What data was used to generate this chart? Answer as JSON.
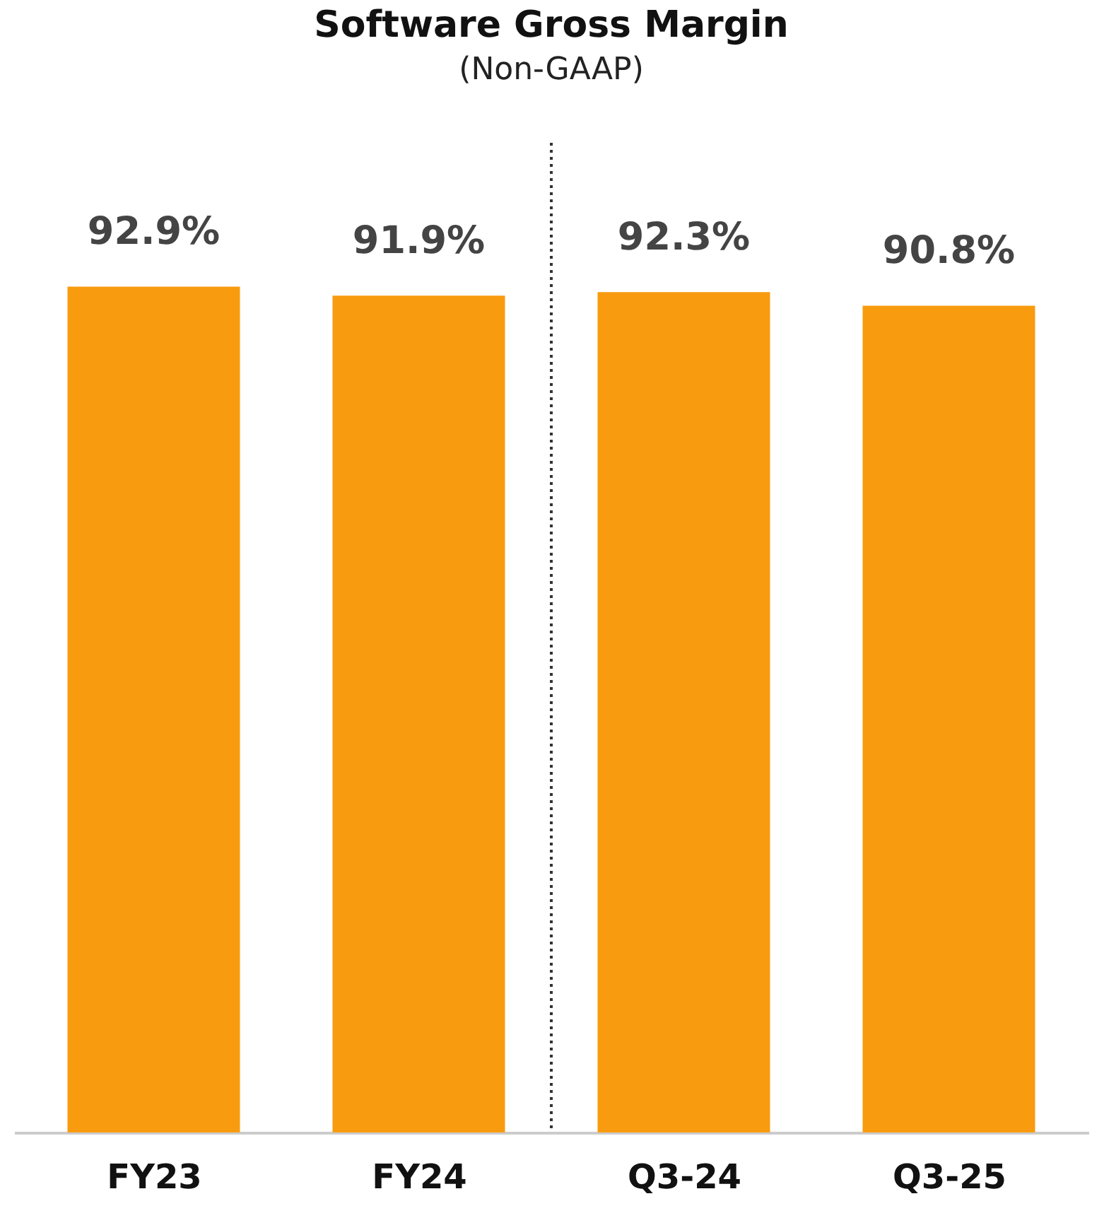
{
  "chart_data": {
    "type": "bar",
    "title": "Software Gross Margin",
    "subtitle": "(Non-GAAP)",
    "categories": [
      "FY23",
      "FY24",
      "Q3-24",
      "Q3-25"
    ],
    "values": [
      92.9,
      91.9,
      92.3,
      90.8
    ],
    "value_labels": [
      "92.9%",
      "91.9%",
      "92.3%",
      "90.8%"
    ],
    "color": "#f99b0e",
    "tick_labels": "x",
    "grid": false
  }
}
